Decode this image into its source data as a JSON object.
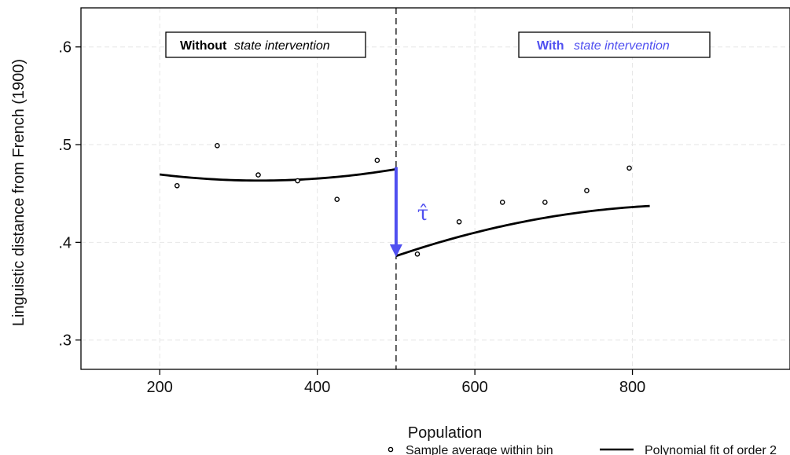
{
  "chart_data": {
    "type": "scatter",
    "xlabel": "Population",
    "ylabel": "Linguistic distance from French (1900)",
    "xlim": [
      100,
      1000
    ],
    "ylim": [
      0.27,
      0.64
    ],
    "x_ticks": [
      {
        "value": 200,
        "label": "200"
      },
      {
        "value": 400,
        "label": "400"
      },
      {
        "value": 600,
        "label": "600"
      },
      {
        "value": 800,
        "label": "800"
      }
    ],
    "y_ticks": [
      {
        "value": 0.3,
        "label": ".3"
      },
      {
        "value": 0.4,
        "label": ".4"
      },
      {
        "value": 0.5,
        "label": ".5"
      },
      {
        "value": 0.6,
        "label": ".6"
      }
    ],
    "grid": true,
    "threshold": 500,
    "series": [
      {
        "name": "Sample average within bin",
        "marker": "hollow-circle",
        "points": [
          [
            222,
            0.458
          ],
          [
            273,
            0.499
          ],
          [
            325,
            0.469
          ],
          [
            375,
            0.463
          ],
          [
            425,
            0.444
          ],
          [
            476,
            0.484
          ],
          [
            527,
            0.388
          ],
          [
            580,
            0.421
          ],
          [
            635,
            0.441
          ],
          [
            689,
            0.441
          ],
          [
            742,
            0.453
          ],
          [
            796,
            0.476
          ]
        ]
      },
      {
        "name": "Polynomial fit of order 2",
        "style": "line",
        "segments": [
          {
            "x_from": 200,
            "x_to": 500,
            "coef": [
              0.5049,
              -0.000255,
              3.9e-07
            ]
          },
          {
            "x_from": 500,
            "x_to": 822,
            "coef": [
              0.1585,
              0.000635,
              -3.6e-07
            ]
          }
        ]
      }
    ],
    "annotations": {
      "left_box_bold": "Without",
      "left_box_italic": "state intervention",
      "right_box_bold": "With",
      "right_box_italic": "state intervention",
      "tau_label": "τ̂",
      "arrow": {
        "x": 500,
        "y_from": 0.477,
        "y_to": 0.385
      }
    },
    "legend": {
      "position": "bottom",
      "items": [
        {
          "label": "Sample average within bin",
          "symbol": "hollow-circle"
        },
        {
          "label": "Polynomial fit of order 2",
          "symbol": "line"
        }
      ]
    },
    "colors": {
      "accent": "#5050f0",
      "line": "#000000",
      "grid": "#e6e6e6"
    }
  }
}
